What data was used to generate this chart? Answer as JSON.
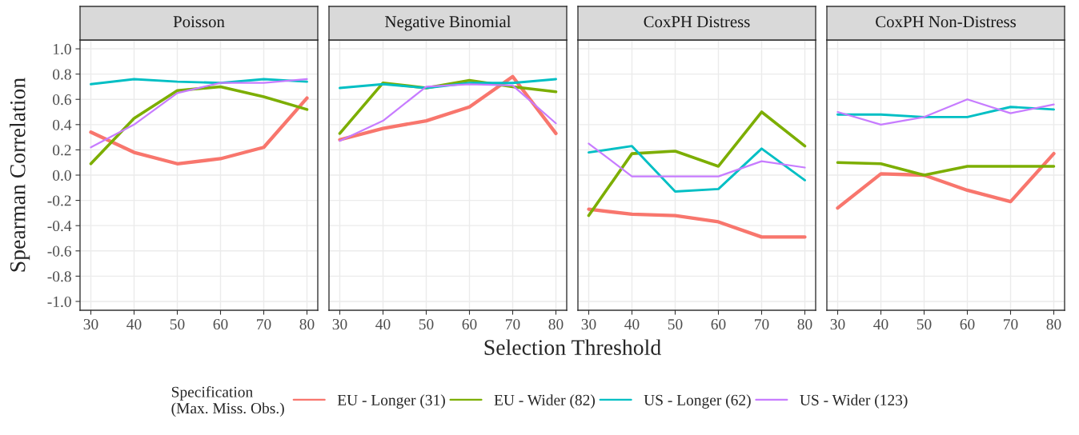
{
  "chart_data": [
    {
      "type": "line",
      "title": "Poisson",
      "ylabel": "Spearman Correlation",
      "legend_title": "Specification\n(Max. Miss. Obs.)",
      "legend": "bottom",
      "grid": true,
      "x": [
        30,
        40,
        50,
        60,
        70,
        80
      ],
      "xlim": [
        27.5,
        82.5
      ],
      "xticks": [
        30,
        40,
        50,
        60,
        70,
        80
      ],
      "ylim": [
        -1.07,
        1.07
      ],
      "yticks": [
        {
          "value": -1.0,
          "label": "-1.0"
        },
        -0.8,
        -0.6,
        -0.4,
        -0.2,
        {
          "value": 0.0,
          "label": "0.0"
        },
        0.2,
        0.4,
        0.6,
        0.8,
        {
          "value": 1.0,
          "label": "1.0"
        }
      ],
      "series": [
        {
          "name": "EU - Longer (31)",
          "color": "#f8766d",
          "values": [
            0.34,
            0.18,
            0.09,
            0.13,
            0.22,
            0.61
          ]
        },
        {
          "name": "EU - Wider (82)",
          "color": "#7cae00",
          "values": [
            0.09,
            0.45,
            0.67,
            0.7,
            0.62,
            0.52
          ]
        },
        {
          "name": "US - Longer (62)",
          "color": "#00bfc4",
          "values": [
            0.72,
            0.76,
            0.74,
            0.73,
            0.76,
            0.74
          ]
        },
        {
          "name": "US - Wider (123)",
          "color": "#c77cff",
          "values": [
            0.22,
            0.4,
            0.65,
            0.73,
            0.73,
            0.76
          ]
        }
      ]
    },
    {
      "type": "line",
      "title": "Negative Binomial",
      "grid": true,
      "tick_labels": "x",
      "x": [
        30,
        40,
        50,
        60,
        70,
        80
      ],
      "xlim": [
        27.5,
        82.5
      ],
      "xticks": [
        30,
        40,
        50,
        60,
        70,
        80
      ],
      "ylim": [
        -1.07,
        1.07
      ],
      "yticks": [
        -1.0,
        -0.8,
        -0.6,
        -0.4,
        -0.2,
        0.0,
        0.2,
        0.4,
        0.6,
        0.8,
        1.0
      ],
      "series": [
        {
          "color": "#f8766d",
          "values": [
            0.28,
            0.37,
            0.43,
            0.54,
            0.78,
            0.33
          ]
        },
        {
          "color": "#7cae00",
          "values": [
            0.33,
            0.73,
            0.69,
            0.75,
            0.7,
            0.66
          ]
        },
        {
          "color": "#00bfc4",
          "values": [
            0.69,
            0.72,
            0.69,
            0.73,
            0.73,
            0.76
          ]
        },
        {
          "color": "#c77cff",
          "values": [
            0.27,
            0.43,
            0.7,
            0.72,
            0.71,
            0.41
          ]
        }
      ]
    },
    {
      "type": "line",
      "title": "CoxPH Distress",
      "xlabel": "Selection Threshold",
      "grid": true,
      "tick_labels": "x",
      "x": [
        30,
        40,
        50,
        60,
        70,
        80
      ],
      "xlim": [
        27.5,
        82.5
      ],
      "xticks": [
        30,
        40,
        50,
        60,
        70,
        80
      ],
      "ylim": [
        -1.07,
        1.07
      ],
      "yticks": [
        -1.0,
        -0.8,
        -0.6,
        -0.4,
        -0.2,
        0.0,
        0.2,
        0.4,
        0.6,
        0.8,
        1.0
      ],
      "series": [
        {
          "color": "#f8766d",
          "values": [
            -0.27,
            -0.31,
            -0.32,
            -0.37,
            -0.49,
            -0.49
          ]
        },
        {
          "color": "#7cae00",
          "values": [
            -0.32,
            0.17,
            0.19,
            0.07,
            0.5,
            0.23
          ]
        },
        {
          "color": "#00bfc4",
          "values": [
            0.18,
            0.23,
            -0.13,
            -0.11,
            0.21,
            -0.04
          ]
        },
        {
          "color": "#c77cff",
          "values": [
            0.25,
            -0.01,
            -0.01,
            -0.01,
            0.11,
            0.06
          ]
        }
      ]
    },
    {
      "type": "line",
      "title": "CoxPH Non-Distress",
      "grid": true,
      "tick_labels": "x",
      "x": [
        30,
        40,
        50,
        60,
        70,
        80
      ],
      "xlim": [
        27.5,
        82.5
      ],
      "xticks": [
        30,
        40,
        50,
        60,
        70,
        80
      ],
      "ylim": [
        -1.07,
        1.07
      ],
      "yticks": [
        -1.0,
        -0.8,
        -0.6,
        -0.4,
        -0.2,
        0.0,
        0.2,
        0.4,
        0.6,
        0.8,
        1.0
      ],
      "series": [
        {
          "color": "#f8766d",
          "values": [
            -0.26,
            0.01,
            0.0,
            -0.12,
            -0.21,
            0.17
          ]
        },
        {
          "color": "#7cae00",
          "values": [
            0.1,
            0.09,
            0.0,
            0.07,
            0.07,
            0.07
          ]
        },
        {
          "color": "#00bfc4",
          "values": [
            0.48,
            0.48,
            0.46,
            0.46,
            0.54,
            0.52
          ]
        },
        {
          "color": "#c77cff",
          "values": [
            0.5,
            0.4,
            0.46,
            0.6,
            0.49,
            0.56
          ]
        }
      ]
    }
  ]
}
